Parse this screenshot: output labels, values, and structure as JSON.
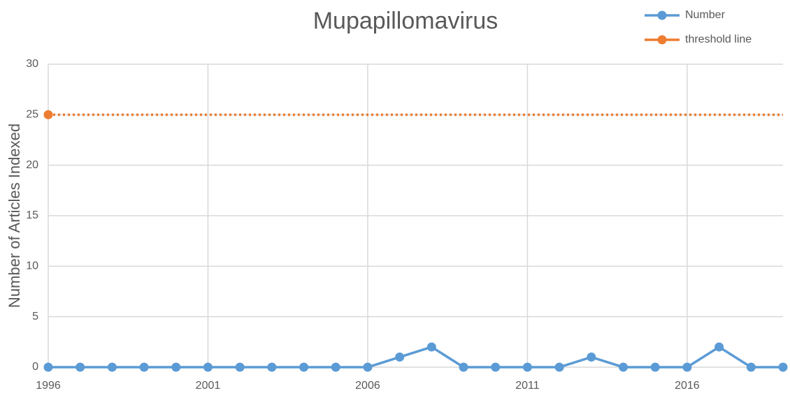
{
  "chart_data": {
    "type": "line",
    "title": "Mupapillomavirus",
    "y_label": "Number of Articles Indexed",
    "x": [
      1996,
      1997,
      1998,
      1999,
      2000,
      2001,
      2002,
      2003,
      2004,
      2005,
      2006,
      2007,
      2008,
      2009,
      2010,
      2011,
      2012,
      2013,
      2014,
      2015,
      2016,
      2017,
      2018,
      2019
    ],
    "series": [
      {
        "name": "Number",
        "color": "#5b9bd5",
        "values": [
          0,
          0,
          0,
          0,
          0,
          0,
          0,
          0,
          0,
          0,
          0,
          1,
          2,
          0,
          0,
          0,
          0,
          1,
          0,
          0,
          0,
          2,
          0,
          0
        ]
      },
      {
        "name": "threshold line",
        "color": "#ed7d31",
        "values": [
          25,
          25,
          25,
          25,
          25,
          25,
          25,
          25,
          25,
          25,
          25,
          25,
          25,
          25,
          25,
          25,
          25,
          25,
          25,
          25,
          25,
          25,
          25,
          25
        ]
      }
    ],
    "xlim": [
      1996,
      2019
    ],
    "xticks": [
      1996,
      2001,
      2006,
      2011,
      2016
    ],
    "ylim": [
      0,
      30
    ],
    "yticks": [
      0,
      5,
      10,
      15,
      20,
      25,
      30
    ],
    "grid": true,
    "legend": "top-right"
  }
}
